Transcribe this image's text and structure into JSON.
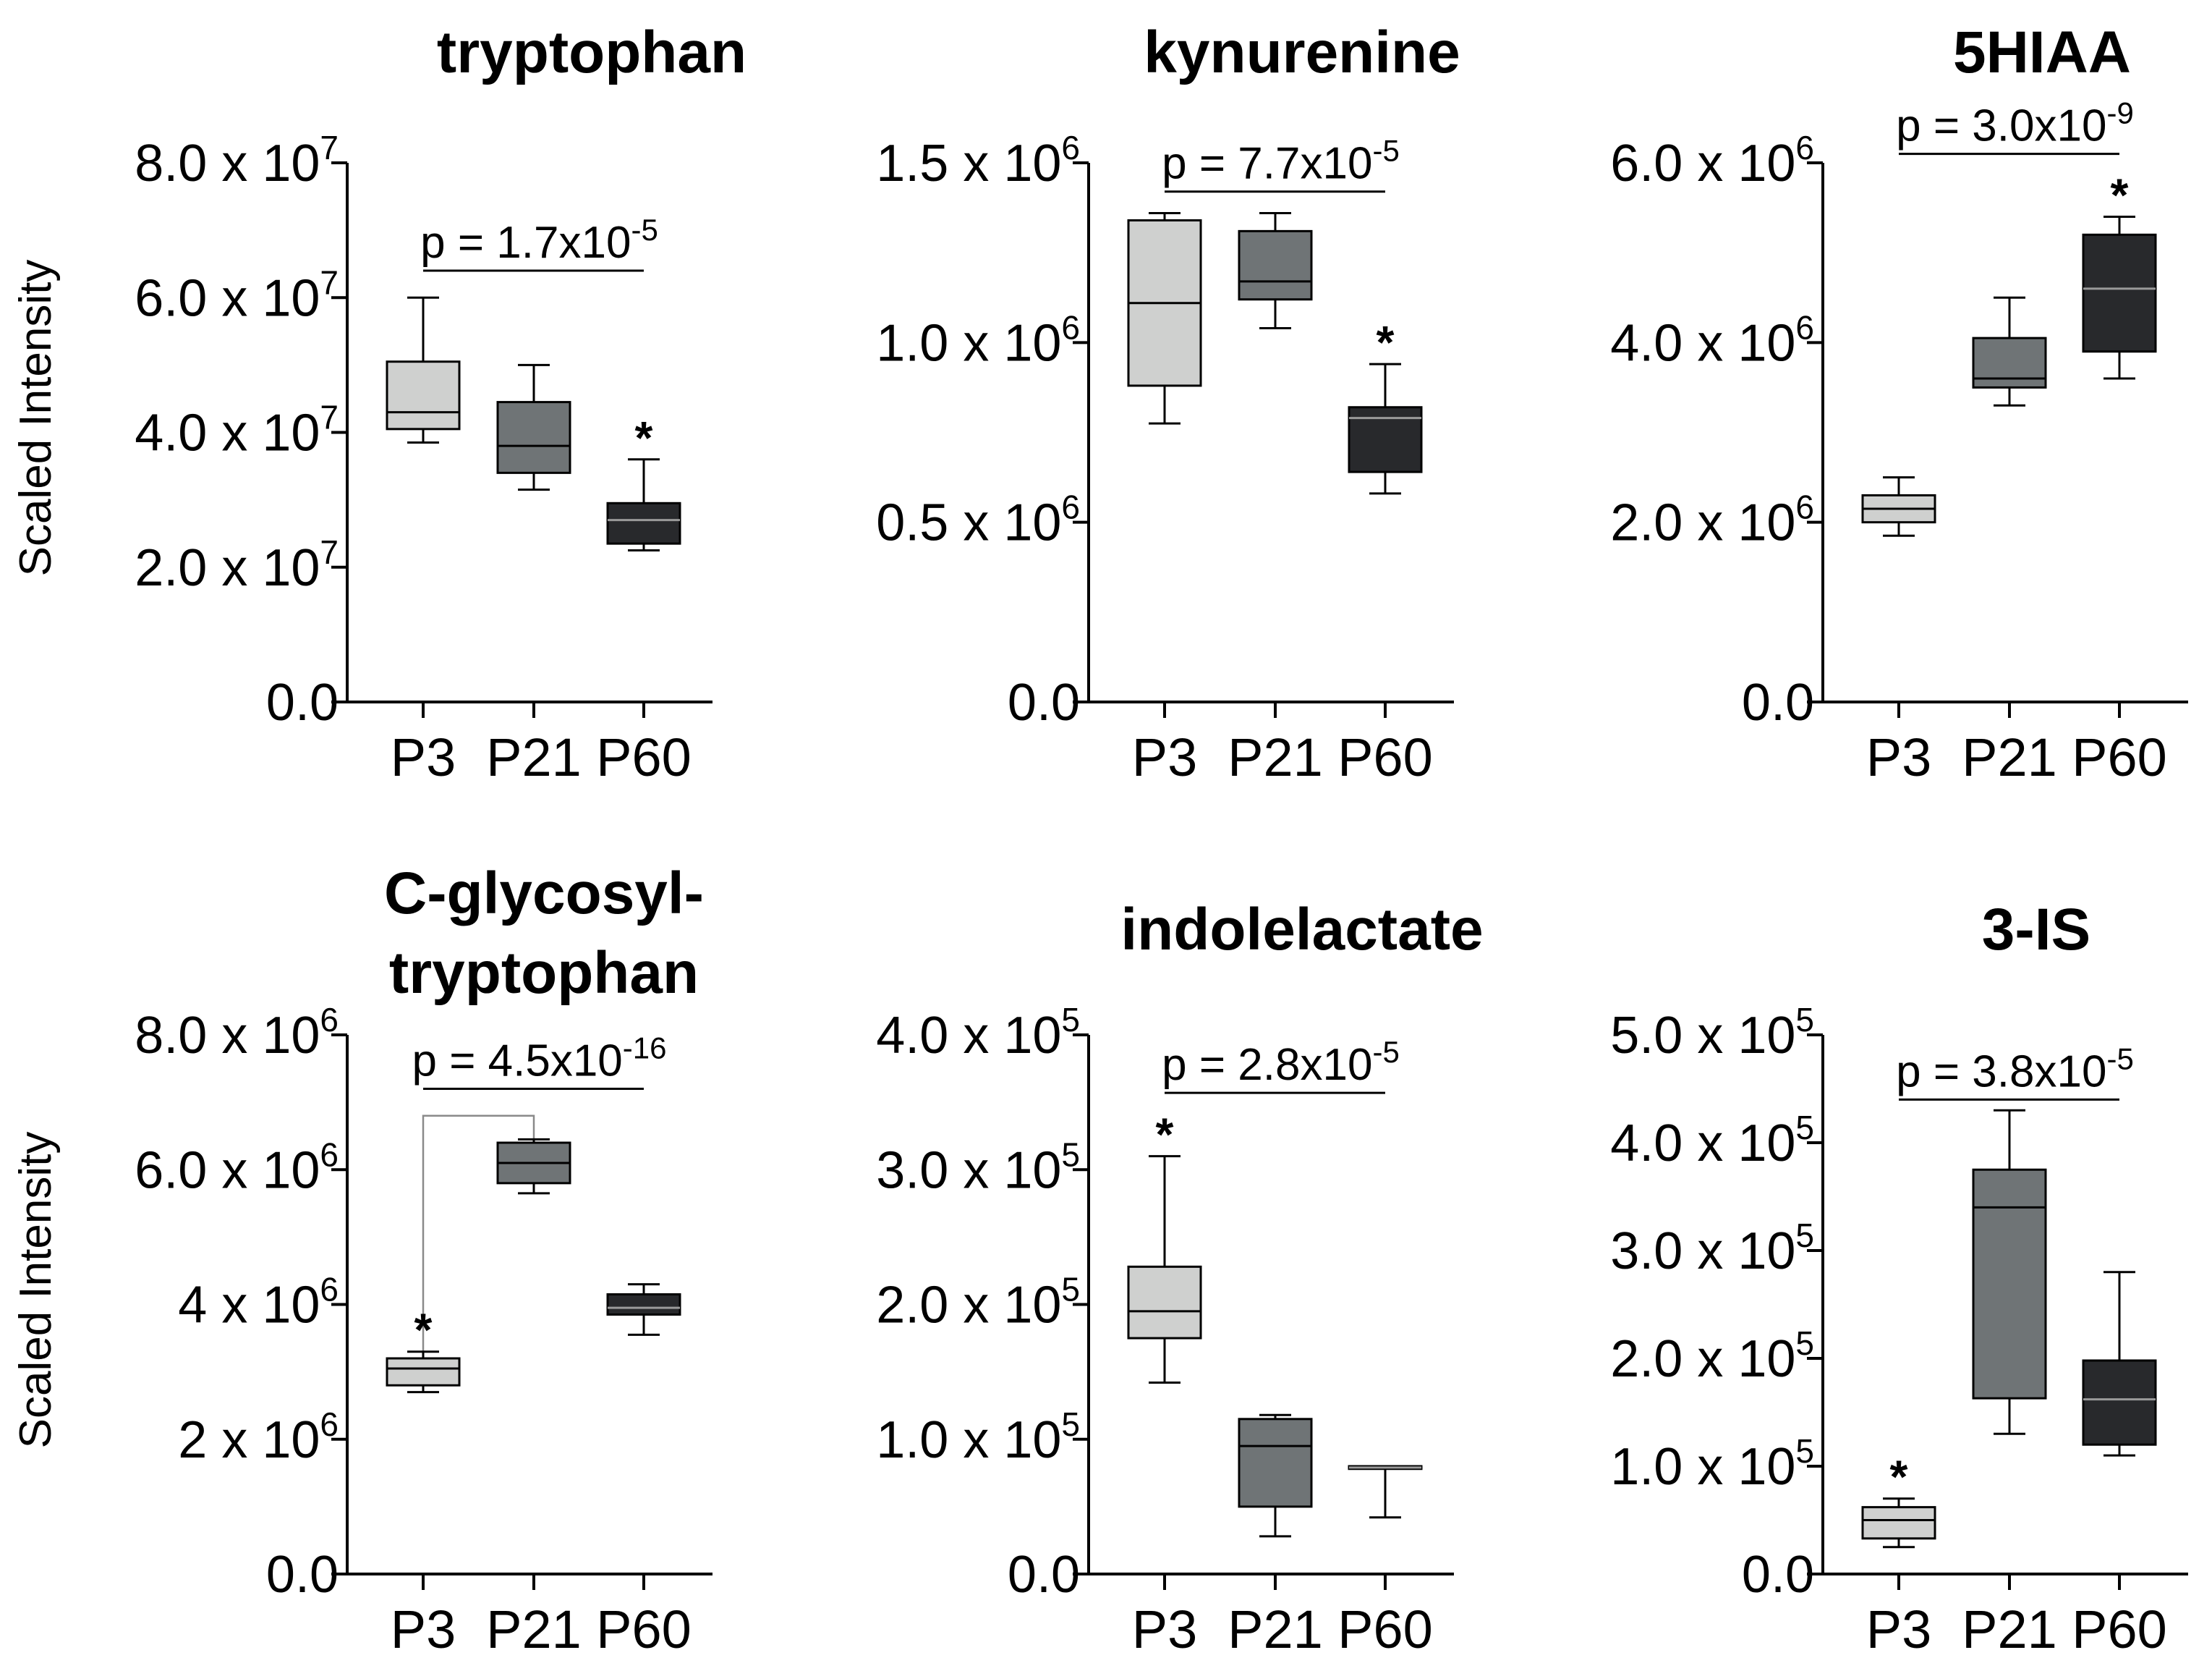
{
  "colors": {
    "P3": "#cfd0cf",
    "P21": "#6f7476",
    "P60": "#28292c"
  },
  "y_axis_label": "Scaled Intensity",
  "chart_data": [
    {
      "type": "box",
      "title": [
        "tryptophan"
      ],
      "ylabel": "Scaled Intensity",
      "ylim": [
        0,
        80000000
      ],
      "yticks": [
        0,
        20000000,
        40000000,
        60000000,
        80000000
      ],
      "tick_labels": [
        {
          "mant": "0.0",
          "exp": ""
        },
        {
          "mant": "2.0 x 10",
          "exp": "7"
        },
        {
          "mant": "4.0 x 10",
          "exp": "7"
        },
        {
          "mant": "6.0 x 10",
          "exp": "7"
        },
        {
          "mant": "8.0 x 10",
          "exp": "7"
        }
      ],
      "categories": [
        "P3",
        "P21",
        "P60"
      ],
      "boxes": [
        {
          "min": 38500000,
          "q1": 40500000,
          "median": 43000000,
          "q3": 50500000,
          "max": 60000000
        },
        {
          "min": 31500000,
          "q1": 34000000,
          "median": 38000000,
          "q3": 44500000,
          "max": 50000000
        },
        {
          "min": 22500000,
          "q1": 23500000,
          "median": 27000000,
          "q3": 29500000,
          "max": 36000000
        }
      ],
      "pvalue": {
        "text": "p = 1.7x10",
        "exp": "-5",
        "from": "P3",
        "to": "P60",
        "y": 64000000
      },
      "stars": [
        {
          "category": "P60",
          "text": "*"
        }
      ]
    },
    {
      "type": "box",
      "title": [
        "kynurenine"
      ],
      "ylabel": "",
      "ylim": [
        0,
        1500000
      ],
      "yticks": [
        0,
        500000,
        1000000,
        1500000
      ],
      "tick_labels": [
        {
          "mant": "0.0",
          "exp": ""
        },
        {
          "mant": "0.5 x 10",
          "exp": "6"
        },
        {
          "mant": "1.0 x 10",
          "exp": "6"
        },
        {
          "mant": "1.5 x 10",
          "exp": "6"
        }
      ],
      "categories": [
        "P3",
        "P21",
        "P60"
      ],
      "boxes": [
        {
          "min": 775000,
          "q1": 880000,
          "median": 1110000,
          "q3": 1340000,
          "max": 1360000
        },
        {
          "min": 1040000,
          "q1": 1120000,
          "median": 1170000,
          "q3": 1310000,
          "max": 1360000
        },
        {
          "min": 580000,
          "q1": 640000,
          "median": 790000,
          "q3": 820000,
          "max": 940000
        }
      ],
      "pvalue": {
        "text": "p = 7.7x10",
        "exp": "-5",
        "from": "P3",
        "to": "P60",
        "y": 1420000
      },
      "stars": [
        {
          "category": "P60",
          "text": "*"
        }
      ]
    },
    {
      "type": "box",
      "title": [
        "5HIAA"
      ],
      "ylabel": "",
      "ylim": [
        0,
        6000000
      ],
      "yticks": [
        0,
        2000000,
        4000000,
        6000000
      ],
      "tick_labels": [
        {
          "mant": "0.0",
          "exp": ""
        },
        {
          "mant": "2.0 x 10",
          "exp": "6"
        },
        {
          "mant": "4.0 x 10",
          "exp": "6"
        },
        {
          "mant": "6.0 x 10",
          "exp": "6"
        }
      ],
      "categories": [
        "P3",
        "P21",
        "P60"
      ],
      "boxes": [
        {
          "min": 1850000,
          "q1": 2000000,
          "median": 2150000,
          "q3": 2300000,
          "max": 2500000
        },
        {
          "min": 3300000,
          "q1": 3500000,
          "median": 3600000,
          "q3": 4050000,
          "max": 4500000
        },
        {
          "min": 3600000,
          "q1": 3900000,
          "median": 4600000,
          "q3": 5200000,
          "max": 5400000
        }
      ],
      "pvalue": {
        "text": "p = 3.0x10",
        "exp": "-9",
        "from": "P3",
        "to": "P60",
        "y": 6100000
      },
      "stars": [
        {
          "category": "P60",
          "text": "*"
        }
      ]
    },
    {
      "type": "box",
      "title": [
        "C-glycosyl-",
        "tryptophan"
      ],
      "ylabel": "Scaled Intensity",
      "ylim": [
        0,
        8000000
      ],
      "yticks": [
        0,
        2000000,
        4000000,
        6000000,
        8000000
      ],
      "tick_labels": [
        {
          "mant": "0.0",
          "exp": ""
        },
        {
          "mant": "2 x 10",
          "exp": "6"
        },
        {
          "mant": "4 x 10",
          "exp": "6"
        },
        {
          "mant": "6.0 x 10",
          "exp": "6"
        },
        {
          "mant": "8.0 x 10",
          "exp": "6"
        }
      ],
      "categories": [
        "P3",
        "P21",
        "P60"
      ],
      "boxes": [
        {
          "min": 2700000,
          "q1": 2800000,
          "median": 3050000,
          "q3": 3200000,
          "max": 3300000
        },
        {
          "min": 5650000,
          "q1": 5800000,
          "median": 6100000,
          "q3": 6400000,
          "max": 6450000
        },
        {
          "min": 3550000,
          "q1": 3850000,
          "median": 3950000,
          "q3": 4150000,
          "max": 4300000
        }
      ],
      "pvalue": {
        "text": "p = 4.5x10",
        "exp": "-16",
        "from": "P3",
        "to": "P60",
        "y": 7200000
      },
      "link": {
        "from": "P3",
        "to": "P21",
        "top": 6800000
      },
      "stars": [
        {
          "category": "P3",
          "text": "*"
        }
      ]
    },
    {
      "type": "box",
      "title": [
        "indolelactate"
      ],
      "ylabel": "",
      "ylim": [
        0,
        400000
      ],
      "yticks": [
        0,
        100000,
        200000,
        300000,
        400000
      ],
      "tick_labels": [
        {
          "mant": "0.0",
          "exp": ""
        },
        {
          "mant": "1.0 x 10",
          "exp": "5"
        },
        {
          "mant": "2.0 x 10",
          "exp": "5"
        },
        {
          "mant": "3.0 x 10",
          "exp": "5"
        },
        {
          "mant": "4.0 x 10",
          "exp": "5"
        }
      ],
      "categories": [
        "P3",
        "P21",
        "P60"
      ],
      "boxes": [
        {
          "min": 142000,
          "q1": 175000,
          "median": 195000,
          "q3": 228000,
          "max": 310000
        },
        {
          "min": 28000,
          "q1": 50000,
          "median": 95000,
          "q3": 115000,
          "max": 118000
        },
        {
          "min": 42000,
          "q1": 78000,
          "median": 79000,
          "q3": 80000,
          "max": 80000
        }
      ],
      "pvalue": {
        "text": "p = 2.8x10",
        "exp": "-5",
        "from": "P3",
        "to": "P60",
        "y": 357000
      },
      "stars": [
        {
          "category": "P3",
          "text": "*"
        }
      ]
    },
    {
      "type": "box",
      "title": [
        "3-IS"
      ],
      "ylabel": "",
      "ylim": [
        0,
        500000
      ],
      "yticks": [
        0,
        100000,
        200000,
        300000,
        400000,
        500000
      ],
      "tick_labels": [
        {
          "mant": "0.0",
          "exp": ""
        },
        {
          "mant": "1.0 x 10",
          "exp": "5"
        },
        {
          "mant": "2.0 x 10",
          "exp": "5"
        },
        {
          "mant": "3.0 x 10",
          "exp": "5"
        },
        {
          "mant": "4.0 x 10",
          "exp": "5"
        },
        {
          "mant": "5.0 x 10",
          "exp": "5"
        }
      ],
      "categories": [
        "P3",
        "P21",
        "P60"
      ],
      "boxes": [
        {
          "min": 25000,
          "q1": 33000,
          "median": 50000,
          "q3": 62000,
          "max": 70000
        },
        {
          "min": 130000,
          "q1": 163000,
          "median": 340000,
          "q3": 375000,
          "max": 430000
        },
        {
          "min": 110000,
          "q1": 120000,
          "median": 162000,
          "q3": 198000,
          "max": 280000
        }
      ],
      "pvalue": {
        "text": "p = 3.8x10",
        "exp": "-5",
        "from": "P3",
        "to": "P60",
        "y": 440000
      },
      "stars": [
        {
          "category": "P3",
          "text": "*"
        }
      ]
    }
  ]
}
